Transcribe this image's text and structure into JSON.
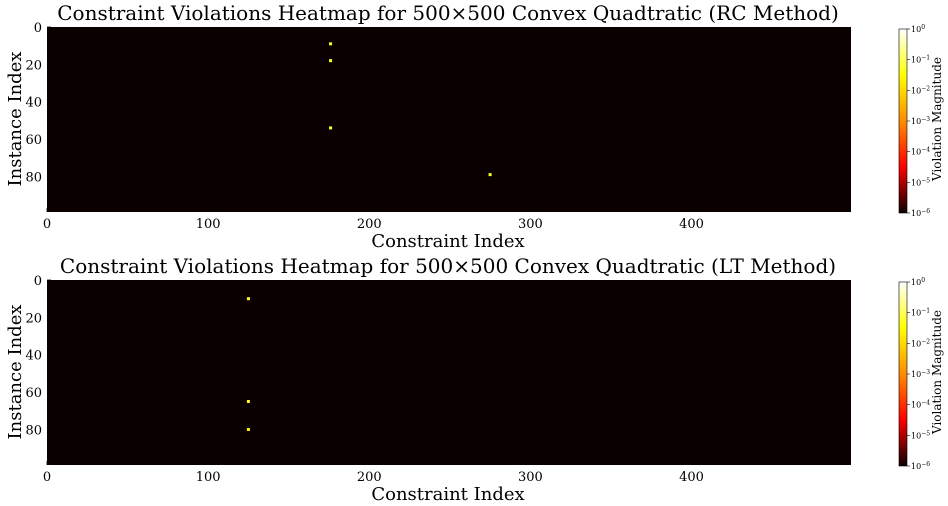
{
  "colors": {
    "background": "#0b0000",
    "colormap": [
      "#0b0000",
      "#ff0000",
      "#ff8c00",
      "#ffff00",
      "#ffffff"
    ]
  },
  "chart_data": [
    {
      "type": "heatmap",
      "title": "Constraint Violations Heatmap for 500×500 Convex Quadtratic (RC Method)",
      "xlabel": "Constraint Index",
      "ylabel": "Instance Index",
      "xlim": [
        0,
        499
      ],
      "ylim": [
        99,
        0
      ],
      "xticks": [
        "0",
        "100",
        "200",
        "300",
        "400"
      ],
      "yticks": [
        "0",
        "20",
        "40",
        "60",
        "80"
      ],
      "colorbar": {
        "label": "Violation Magnitude",
        "scale": "log",
        "range": [
          1e-06,
          1
        ],
        "ticks": [
          "10^0",
          "10^-1",
          "10^-2",
          "10^-3",
          "10^-4",
          "10^-5",
          "10^-6"
        ]
      },
      "points": [
        {
          "x": 176,
          "y": 9,
          "value": 0.05
        },
        {
          "x": 176,
          "y": 18,
          "value": 0.05
        },
        {
          "x": 176,
          "y": 54,
          "value": 0.05
        },
        {
          "x": 275,
          "y": 79,
          "value": 0.05
        }
      ]
    },
    {
      "type": "heatmap",
      "title": "Constraint Violations Heatmap for 500×500 Convex Quadtratic (LT Method)",
      "xlabel": "Constraint Index",
      "ylabel": "Instance Index",
      "xlim": [
        0,
        499
      ],
      "ylim": [
        99,
        0
      ],
      "xticks": [
        "0",
        "100",
        "200",
        "300",
        "400"
      ],
      "yticks": [
        "0",
        "20",
        "40",
        "60",
        "80"
      ],
      "colorbar": {
        "label": "Violation Magnitude",
        "scale": "log",
        "range": [
          1e-06,
          1
        ],
        "ticks": [
          "10^0",
          "10^-1",
          "10^-2",
          "10^-3",
          "10^-4",
          "10^-5",
          "10^-6"
        ]
      },
      "points": [
        {
          "x": 125,
          "y": 10,
          "value": 0.05
        },
        {
          "x": 125,
          "y": 65,
          "value": 0.05
        },
        {
          "x": 125,
          "y": 80,
          "value": 0.02
        }
      ]
    }
  ]
}
